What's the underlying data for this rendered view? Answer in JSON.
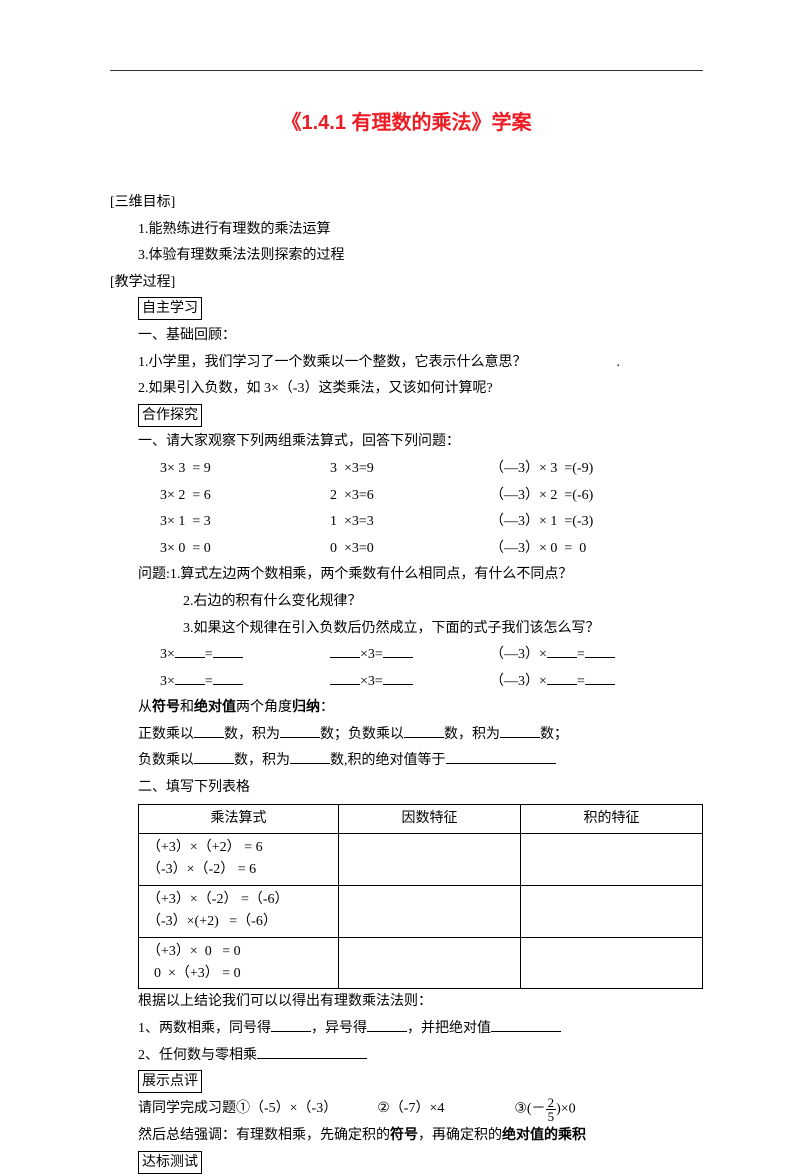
{
  "title": "《1.4.1 有理数的乘法》学案",
  "sec_objectives": "[三维目标]",
  "obj1": "1.能熟练进行有理数的乘法运算",
  "obj2": "3.体验有理数乘法法则探索的过程",
  "sec_process": "[教学过程]",
  "box_self": "自主学习",
  "review_h": "一、基础回顾：",
  "review1": "1.小学里，我们学习了一个数乘以一个整数，它表示什么意思？",
  "review2": "2.如果引入负数，如 3×（-3）这类乘法，又该如何计算呢?",
  "box_coop": "合作探究",
  "coop_h": "一、请大家观察下列两组乘法算式，回答下列问题：",
  "eq_rows": [
    {
      "a": "3× 3  = 9",
      "b": "3  ×3=9",
      "c": "（―3）× 3  =(-9)"
    },
    {
      "a": "3× 2  = 6",
      "b": "2  ×3=6",
      "c": "（―3）× 2  =(-6)"
    },
    {
      "a": "3× 1  = 3",
      "b": "1  ×3=3",
      "c": "（―3）× 1  =(-3)"
    },
    {
      "a": "3× 0  = 0",
      "b": "0  ×3=0",
      "c": "（―3）× 0  =  0"
    }
  ],
  "q1": "问题:1.算式左边两个数相乘，两个乘数有什么相同点，有什么不同点？",
  "q2": "2.右边的积有什么变化规律？",
  "q3": "3.如果这个规律在引入负数后仍然成立，下面的式子我们该怎么写？",
  "fill_rows": [
    {
      "a_pre": "3×",
      "b_mid": "×3=",
      "c_pre": "（―3）×"
    },
    {
      "a_pre": "3×",
      "b_mid": "×3=",
      "c_pre": "（―3）×"
    }
  ],
  "summary_h_pre": "从",
  "summary_h_b1": "符号",
  "summary_h_mid": "和",
  "summary_h_b2": "绝对值",
  "summary_h_post": "两个角度",
  "summary_h_b3": "归纳",
  "summary_h_colon": "：",
  "sum1_a": "正数乘以",
  "sum1_b": "数，积为",
  "sum1_c": "数；负数乘以",
  "sum1_d": "数，积为",
  "sum1_e": "数；",
  "sum2_a": "负数乘以",
  "sum2_b": "数，积为",
  "sum2_c": "数,积的绝对值等于",
  "table_h": "二、填写下列表格",
  "table": {
    "headers": [
      "乘法算式",
      "因数特征",
      "积的特征"
    ],
    "rows": [
      [
        "（+3）×（+2） = 6\n（-3）×（-2） = 6",
        "",
        ""
      ],
      [
        "（+3）×（-2） =（-6）\n（-3）×(+2)   =（-6）",
        "",
        ""
      ],
      [
        "（+3）×  0   = 0\n  0  ×（+3） = 0",
        "",
        ""
      ]
    ]
  },
  "rule_h": "根据以上结论我们可以以得出有理数乘法法则：",
  "rule1_a": "1、两数相乘，同号得",
  "rule1_b": "，异号得",
  "rule1_c": "，并把绝对值",
  "rule2_a": "2、任何数与零相乘",
  "box_show": "展示点评",
  "ex_h_a": "请同学完成习题①（-5）×（-3）",
  "ex_h_b": "②（-7）×4",
  "ex_h_c_pre": "③(－",
  "ex_frac_num": "2",
  "ex_frac_den": "5",
  "ex_h_c_post": ")×0",
  "final_a": "然后总结强调：有理数相乘，先确定积的",
  "final_b1": "符号",
  "final_mid": "，再确定积的",
  "final_b2": "绝对值的乘积",
  "box_test": "达标测试"
}
